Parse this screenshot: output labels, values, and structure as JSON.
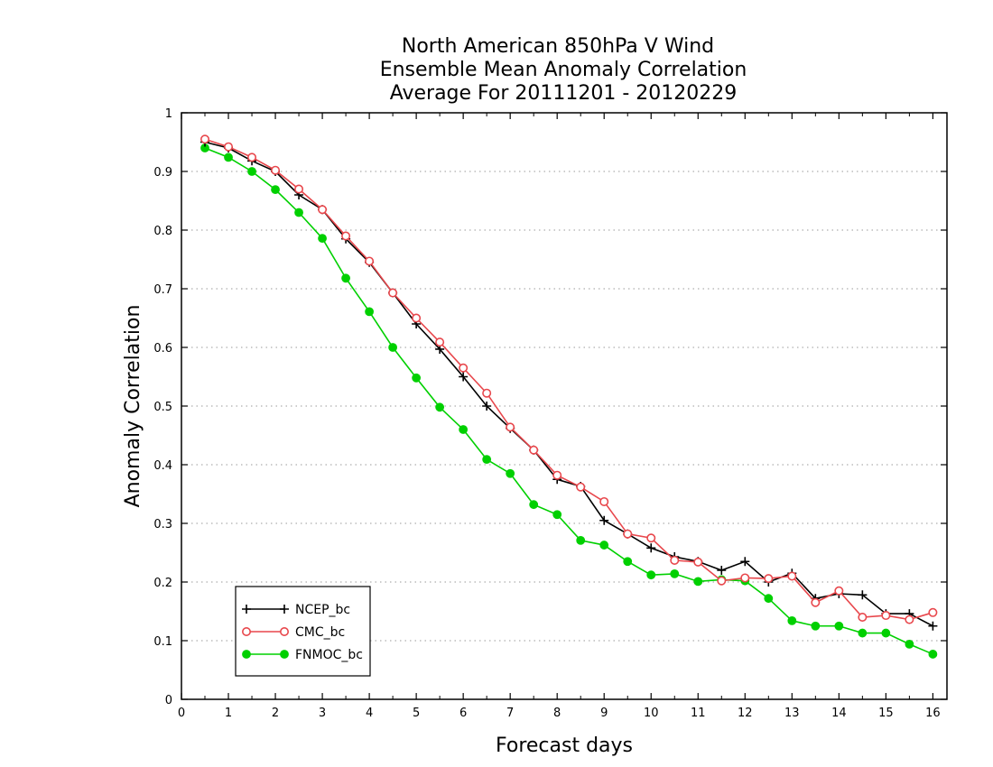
{
  "chart_data": {
    "type": "line",
    "title": [
      "North American 850hPa V Wind",
      "Ensemble Mean Anomaly Correlation",
      "Average For 20111201 - 20120229"
    ],
    "xlabel": "Forecast days",
    "ylabel": "Anomaly Correlation",
    "xlim": [
      0,
      16.3
    ],
    "ylim": [
      0,
      1
    ],
    "x_ticks": [
      0,
      1,
      2,
      3,
      4,
      5,
      6,
      7,
      8,
      9,
      10,
      11,
      12,
      13,
      14,
      15,
      16
    ],
    "y_ticks": [
      0,
      0.1,
      0.2,
      0.3,
      0.4,
      0.5,
      0.6,
      0.7,
      0.8,
      0.9,
      1
    ],
    "y_tick_labels": [
      "0",
      "0.1",
      "0.2",
      "0.3",
      "0.4",
      "0.5",
      "0.6",
      "0.7",
      "0.8",
      "0.9",
      "1"
    ],
    "grid": "horizontal-dotted",
    "legend_position": "bottom-left",
    "x": [
      0.5,
      1,
      1.5,
      2,
      2.5,
      3,
      3.5,
      4,
      4.5,
      5,
      5.5,
      6,
      6.5,
      7,
      7.5,
      8,
      8.5,
      9,
      9.5,
      10,
      10.5,
      11,
      11.5,
      12,
      12.5,
      13,
      13.5,
      14,
      14.5,
      15,
      15.5,
      16
    ],
    "series": [
      {
        "name": "NCEP_bc",
        "color": "#000000",
        "marker": "plus",
        "values": [
          0.95,
          0.94,
          0.918,
          0.9,
          0.86,
          0.835,
          0.785,
          0.745,
          0.693,
          0.64,
          0.597,
          0.55,
          0.5,
          0.462,
          0.425,
          0.375,
          0.363,
          0.305,
          0.282,
          0.258,
          0.243,
          0.235,
          0.22,
          0.235,
          0.2,
          0.215,
          0.172,
          0.18,
          0.178,
          0.146,
          0.146,
          0.125
        ]
      },
      {
        "name": "CMC_bc",
        "color": "#e8474c",
        "marker": "open-circle",
        "values": [
          0.955,
          0.942,
          0.924,
          0.902,
          0.87,
          0.835,
          0.79,
          0.747,
          0.693,
          0.65,
          0.609,
          0.565,
          0.522,
          0.464,
          0.425,
          0.382,
          0.362,
          0.337,
          0.282,
          0.275,
          0.237,
          0.234,
          0.202,
          0.207,
          0.206,
          0.21,
          0.165,
          0.185,
          0.14,
          0.143,
          0.136,
          0.148
        ]
      },
      {
        "name": "FNMOC_bc",
        "color": "#00d000",
        "marker": "filled-circle",
        "values": [
          0.94,
          0.924,
          0.9,
          0.869,
          0.83,
          0.786,
          0.718,
          0.661,
          0.6,
          0.548,
          0.498,
          0.46,
          0.409,
          0.385,
          0.332,
          0.315,
          0.271,
          0.263,
          0.235,
          0.212,
          0.214,
          0.201,
          0.204,
          0.202,
          0.172,
          0.134,
          0.125,
          0.125,
          0.113,
          0.113,
          0.094,
          0.077
        ]
      }
    ]
  }
}
